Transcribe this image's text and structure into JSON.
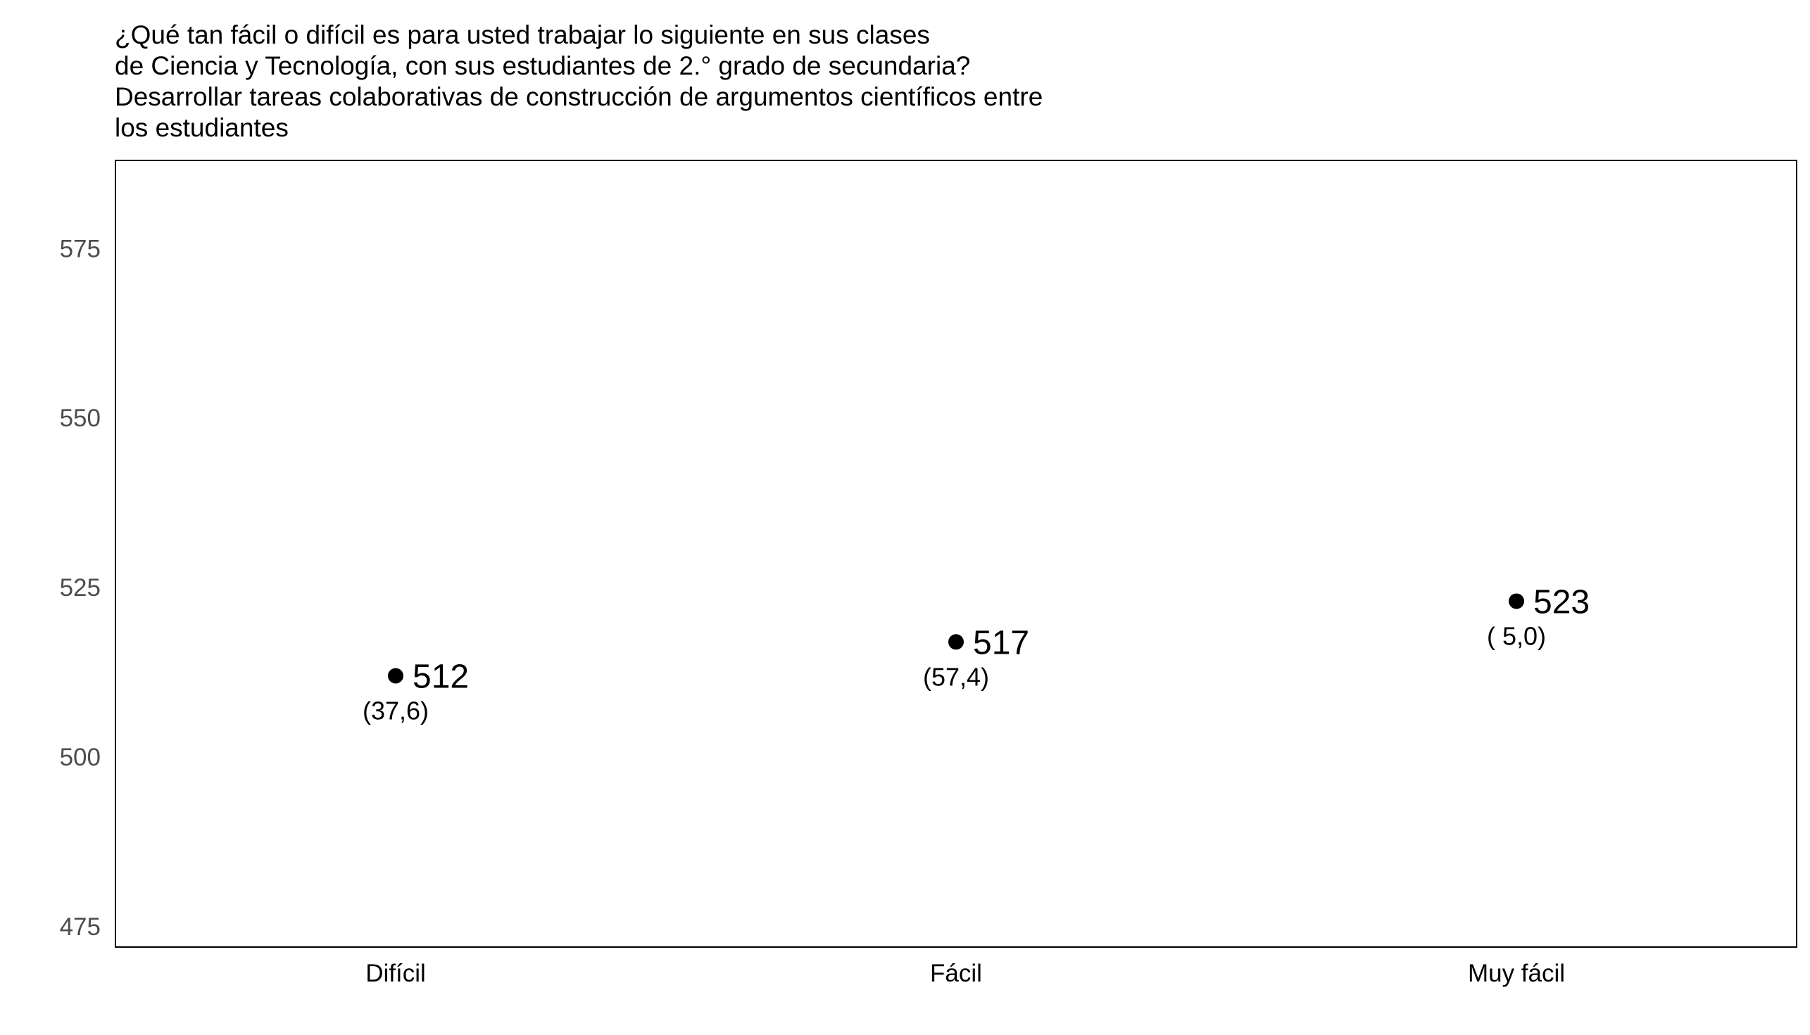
{
  "chart_data": {
    "type": "scatter",
    "title_lines": [
      "¿Qué tan fácil o difícil es para usted trabajar lo siguiente en sus clases",
      "de Ciencia y Tecnología, con sus estudiantes de 2.° grado de secundaria?",
      "Desarrollar tareas colaborativas de construcción de argumentos científicos entre",
      "los estudiantes"
    ],
    "categories": [
      "Difícil",
      "Fácil",
      "Muy fácil"
    ],
    "values": [
      512,
      517,
      523
    ],
    "value_labels": [
      "512",
      "517",
      "523"
    ],
    "percent_labels": [
      "(37,6)",
      "(57,4)",
      "( 5,0)"
    ],
    "y_ticks": [
      "475",
      "500",
      "525",
      "550",
      "575"
    ],
    "ylim": [
      472,
      588
    ],
    "xlabel": "",
    "ylabel": "",
    "grid": false,
    "colors": {
      "point": "#000000",
      "frame": "#000000",
      "tick_text": "#4d4d4d"
    }
  }
}
